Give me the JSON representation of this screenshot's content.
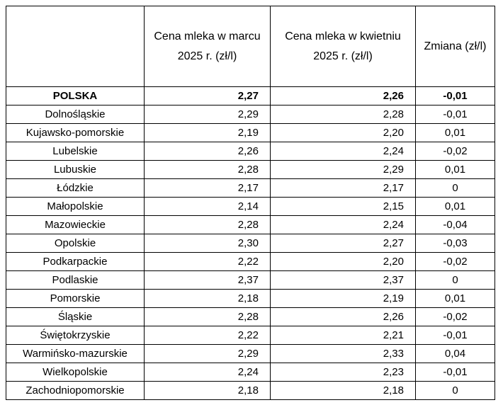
{
  "chart_data": {
    "type": "table",
    "columns": [
      "",
      "Cena mleka w marcu 2025 r. (zł/l)",
      "Cena mleka w kwietniu 2025 r. (zł/l)",
      "Zmiana (zł/l)"
    ],
    "rows": [
      [
        "POLSKA",
        "2,27",
        "2,26",
        "-0,01"
      ],
      [
        "Dolnośląskie",
        "2,29",
        "2,28",
        "-0,01"
      ],
      [
        "Kujawsko-pomorskie",
        "2,19",
        "2,20",
        "0,01"
      ],
      [
        "Lubelskie",
        "2,26",
        "2,24",
        "-0,02"
      ],
      [
        "Lubuskie",
        "2,28",
        "2,29",
        "0,01"
      ],
      [
        "Łódzkie",
        "2,17",
        "2,17",
        "0"
      ],
      [
        "Małopolskie",
        "2,14",
        "2,15",
        "0,01"
      ],
      [
        "Mazowieckie",
        "2,28",
        "2,24",
        "-0,04"
      ],
      [
        "Opolskie",
        "2,30",
        "2,27",
        "-0,03"
      ],
      [
        "Podkarpackie",
        "2,22",
        "2,20",
        "-0,02"
      ],
      [
        "Podlaskie",
        "2,37",
        "2,37",
        "0"
      ],
      [
        "Pomorskie",
        "2,18",
        "2,19",
        "0,01"
      ],
      [
        "Śląskie",
        "2,28",
        "2,26",
        "-0,02"
      ],
      [
        "Świętokrzyskie",
        "2,22",
        "2,21",
        "-0,01"
      ],
      [
        "Warmińsko-mazurskie",
        "2,29",
        "2,33",
        "0,04"
      ],
      [
        "Wielkopolskie",
        "2,24",
        "2,23",
        "-0,01"
      ],
      [
        "Zachodniopomorskie",
        "2,18",
        "2,18",
        "0"
      ]
    ],
    "bold_rows": [
      0
    ],
    "layout": {
      "grid": true,
      "border_color": "#000000",
      "decimal_separator": ","
    }
  }
}
